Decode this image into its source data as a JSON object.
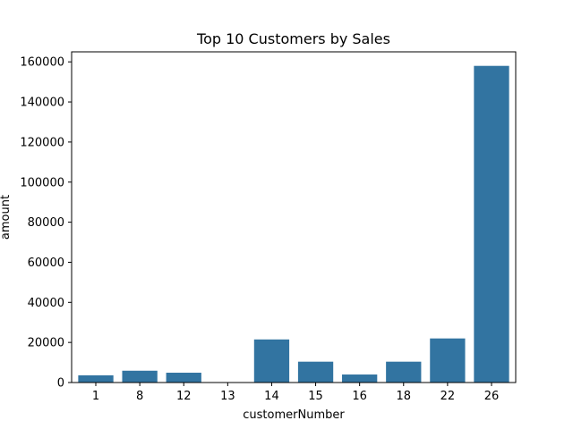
{
  "chart_data": {
    "type": "bar",
    "title": "Top 10 Customers by Sales",
    "xlabel": "customerNumber",
    "ylabel": "amount",
    "categories": [
      "1",
      "8",
      "12",
      "13",
      "14",
      "15",
      "16",
      "18",
      "22",
      "26"
    ],
    "values": [
      3600,
      5900,
      4900,
      100,
      21500,
      10400,
      4000,
      10400,
      22000,
      158000
    ],
    "ylim": [
      0,
      165000
    ],
    "yticks": [
      0,
      20000,
      40000,
      60000,
      80000,
      100000,
      120000,
      140000,
      160000
    ],
    "ytick_labels": [
      "0",
      "20000",
      "40000",
      "60000",
      "80000",
      "100000",
      "120000",
      "140000",
      "160000"
    ],
    "bar_color": "#3274a1",
    "grid": false,
    "legend": "none"
  }
}
